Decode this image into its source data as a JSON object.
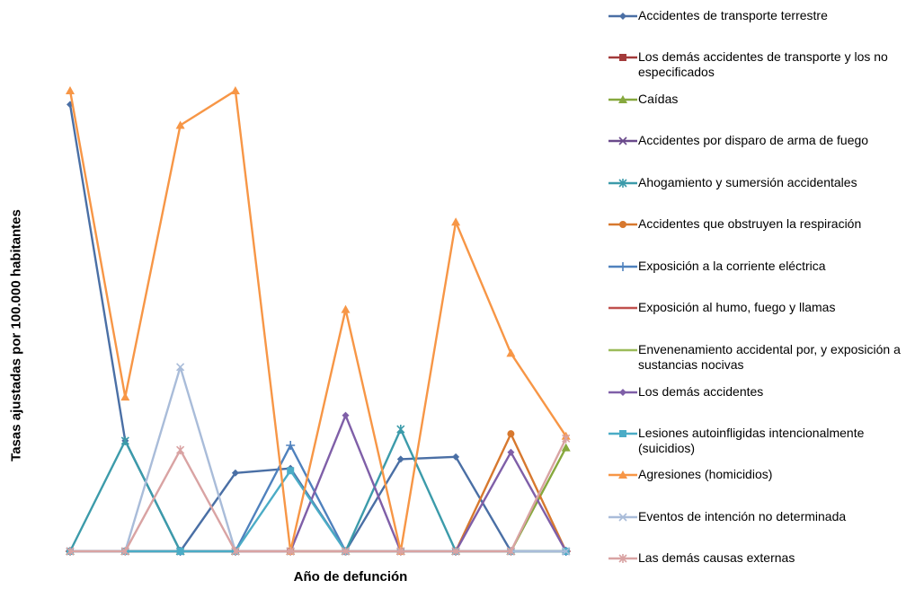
{
  "chart_data": {
    "type": "line",
    "title": "",
    "xlabel": "Año de defunción",
    "ylabel": "Tasas ajustadas por 100.000 habitantes",
    "x": [
      1,
      2,
      3,
      4,
      5,
      6,
      7,
      8,
      9,
      10
    ],
    "ylim": [
      0,
      100
    ],
    "grid": false,
    "legend_position": "right",
    "series": [
      {
        "name": "Accidentes de transporte terrestre",
        "color": "#4A6FA5",
        "marker": "diamond",
        "values": [
          97,
          24,
          0,
          17,
          18,
          0,
          20,
          20.5,
          0,
          0
        ]
      },
      {
        "name": "Los demás accidentes de transporte y los no especificados",
        "color": "#A33A3A",
        "marker": "square",
        "values": [
          0,
          0,
          0,
          0,
          0,
          0,
          0,
          0,
          0,
          0
        ]
      },
      {
        "name": "Caídas",
        "color": "#86A83D",
        "marker": "triangle",
        "values": [
          0,
          0,
          0,
          0,
          0,
          0,
          0,
          0,
          0,
          22.5
        ]
      },
      {
        "name": "Accidentes por disparo de arma de fuego",
        "color": "#6A4A8C",
        "marker": "x",
        "values": [
          0,
          0,
          0,
          0,
          0,
          0,
          0,
          0,
          0,
          0
        ]
      },
      {
        "name": "Ahogamiento y sumersión accidentales",
        "color": "#3C9BAA",
        "marker": "asterisk",
        "values": [
          0,
          24,
          0,
          0,
          0,
          0,
          26.5,
          0,
          0,
          0
        ]
      },
      {
        "name": "Accidentes que obstruyen la respiración",
        "color": "#D7782E",
        "marker": "circle",
        "values": [
          0,
          0,
          0,
          0,
          0,
          0,
          0,
          0,
          25.5,
          0
        ]
      },
      {
        "name": "Exposición a la corriente eléctrica",
        "color": "#4F81BD",
        "marker": "plus",
        "values": [
          0,
          0,
          0,
          0,
          23,
          0,
          0,
          0,
          0,
          0
        ]
      },
      {
        "name": "Exposición al humo, fuego y llamas",
        "color": "#C0504D",
        "marker": "dash",
        "values": [
          0,
          0,
          0,
          0,
          0,
          0,
          0,
          0,
          0,
          0
        ]
      },
      {
        "name": "Envenenamiento accidental por, y exposición a sustancias nocivas",
        "color": "#9BBB59",
        "marker": "none",
        "values": [
          0,
          0,
          0,
          0,
          0,
          0,
          0,
          0,
          0,
          0
        ]
      },
      {
        "name": "Los demás accidentes",
        "color": "#7F5FA8",
        "marker": "diamond",
        "values": [
          0,
          0,
          0,
          0,
          0,
          29.5,
          0,
          0,
          21.5,
          0
        ]
      },
      {
        "name": "Lesiones autoinfligidas intencionalmente (suicidios)",
        "color": "#4BACC6",
        "marker": "square",
        "values": [
          0,
          0,
          0,
          0,
          17.5,
          0,
          0,
          0,
          0,
          0
        ]
      },
      {
        "name": "Agresiones (homicidios)",
        "color": "#F79646",
        "marker": "triangle",
        "values": [
          100,
          33.5,
          92.5,
          100,
          0,
          52.5,
          0,
          71.5,
          43,
          25
        ]
      },
      {
        "name": "Eventos de intención no determinada",
        "color": "#A9BCD9",
        "marker": "x",
        "values": [
          0,
          0,
          40,
          0,
          0,
          0,
          0,
          0,
          0,
          0
        ]
      },
      {
        "name": "Las demás causas externas",
        "color": "#D9A3A3",
        "marker": "asterisk",
        "values": [
          0,
          0,
          22,
          0,
          0,
          0,
          0,
          0,
          0,
          24.5
        ]
      }
    ]
  }
}
